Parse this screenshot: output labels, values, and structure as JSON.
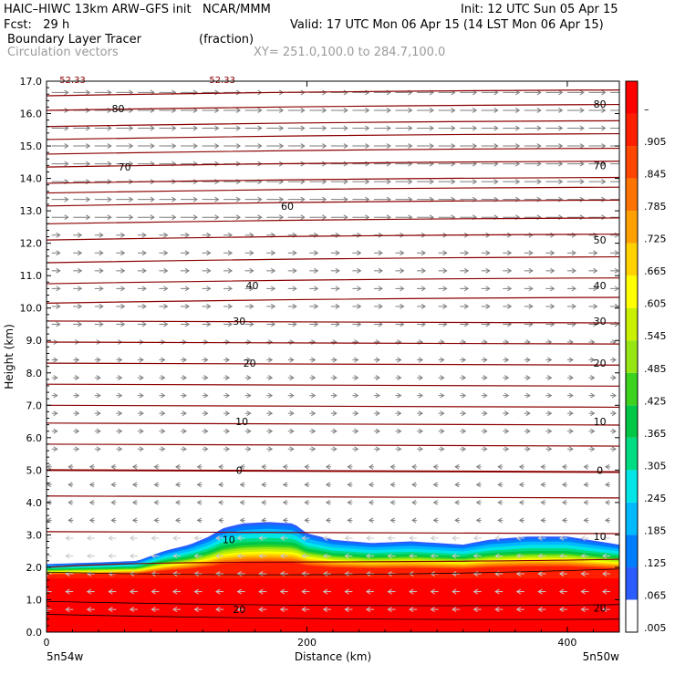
{
  "header": {
    "line1_left": "HAIC–HIWC 13km ARW–GFS init   NCAR/MMM",
    "line1_right": "Init: 12 UTC Sun 05 Apr 15",
    "line2_left": "Fcst:   29 h",
    "line2_right": "Valid: 17 UTC Mon 06 Apr 15 (14 LST Mon 06 Apr 15)",
    "field1_name": "Boundary Layer Tracer",
    "field1_units": "(fraction)",
    "field2_name": "Circulation vectors",
    "xy_range": "XY= 251.0,100.0 to 284.7,100.0"
  },
  "chart_data": {
    "type": "heatmap",
    "title": "Boundary Layer Tracer",
    "units": "(fraction)",
    "ylabel": "Height (km)",
    "xlabel": "Distance (km)",
    "xlim": [
      0,
      440
    ],
    "ylim": [
      0,
      17
    ],
    "y_ticks": [
      "0.0",
      "1.0",
      "2.0",
      "3.0",
      "4.0",
      "5.0",
      "6.0",
      "7.0",
      "8.0",
      "9.0",
      "10.0",
      "11.0",
      "12.0",
      "13.0",
      "14.0",
      "15.0",
      "16.0",
      "17.0"
    ],
    "x_ticks": [
      "0",
      "200",
      "400"
    ],
    "x_tick_values": [
      0,
      200,
      400
    ],
    "left_location": "5n54w",
    "right_location": "5n50w",
    "colorbar_labels": [
      ".005",
      ".065",
      ".125",
      ".185",
      ".245",
      ".305",
      ".365",
      ".425",
      ".485",
      ".545",
      ".605",
      ".665",
      ".725",
      ".785",
      ".845",
      ".905",
      "–"
    ],
    "colorbar_colors": [
      "#ffffff",
      "#2a5cff",
      "#007dff",
      "#00b9ff",
      "#00e6e6",
      "#00dc82",
      "#00c846",
      "#3cd21e",
      "#96e614",
      "#c8f000",
      "#ffff00",
      "#ffd200",
      "#ffa000",
      "#ff7300",
      "#ff4600",
      "#ff1e00",
      "#ff0000"
    ],
    "contour_labels": [
      {
        "value": "80",
        "x": 55,
        "y": 16.15
      },
      {
        "value": "80",
        "x": 425,
        "y": 16.3
      },
      {
        "value": "70",
        "x": 60,
        "y": 14.35
      },
      {
        "value": "70",
        "x": 425,
        "y": 14.4
      },
      {
        "value": "60",
        "x": 185,
        "y": 13.15
      },
      {
        "value": "50",
        "x": 425,
        "y": 12.1
      },
      {
        "value": "40",
        "x": 158,
        "y": 10.7
      },
      {
        "value": "40",
        "x": 425,
        "y": 10.7
      },
      {
        "value": "30",
        "x": 148,
        "y": 9.6
      },
      {
        "value": "30",
        "x": 425,
        "y": 9.6
      },
      {
        "value": "20",
        "x": 156,
        "y": 8.3
      },
      {
        "value": "20",
        "x": 425,
        "y": 8.3
      },
      {
        "value": "10",
        "x": 150,
        "y": 6.5
      },
      {
        "value": "10",
        "x": 425,
        "y": 6.5
      },
      {
        "value": "0",
        "x": 148,
        "y": 5.0
      },
      {
        "value": "0",
        "x": 425,
        "y": 5.0
      },
      {
        "value": "10",
        "x": 140,
        "y": 2.85
      },
      {
        "value": "10",
        "x": 425,
        "y": 2.95
      },
      {
        "value": "20",
        "x": 148,
        "y": 0.7
      },
      {
        "value": "20",
        "x": 425,
        "y": 0.75
      }
    ],
    "top_labels": [
      {
        "value": "52.33",
        "x": 20
      },
      {
        "value": "52.33",
        "x": 135
      }
    ],
    "tracer_top_km": [
      [
        0,
        2.1
      ],
      [
        40,
        2.15
      ],
      [
        70,
        2.2
      ],
      [
        90,
        2.5
      ],
      [
        110,
        2.7
      ],
      [
        125,
        2.95
      ],
      [
        135,
        3.2
      ],
      [
        150,
        3.35
      ],
      [
        170,
        3.4
      ],
      [
        190,
        3.35
      ],
      [
        200,
        3.05
      ],
      [
        220,
        2.85
      ],
      [
        250,
        2.75
      ],
      [
        280,
        2.8
      ],
      [
        300,
        2.75
      ],
      [
        320,
        2.7
      ],
      [
        340,
        2.85
      ],
      [
        370,
        2.95
      ],
      [
        400,
        2.95
      ],
      [
        440,
        2.7
      ]
    ]
  }
}
